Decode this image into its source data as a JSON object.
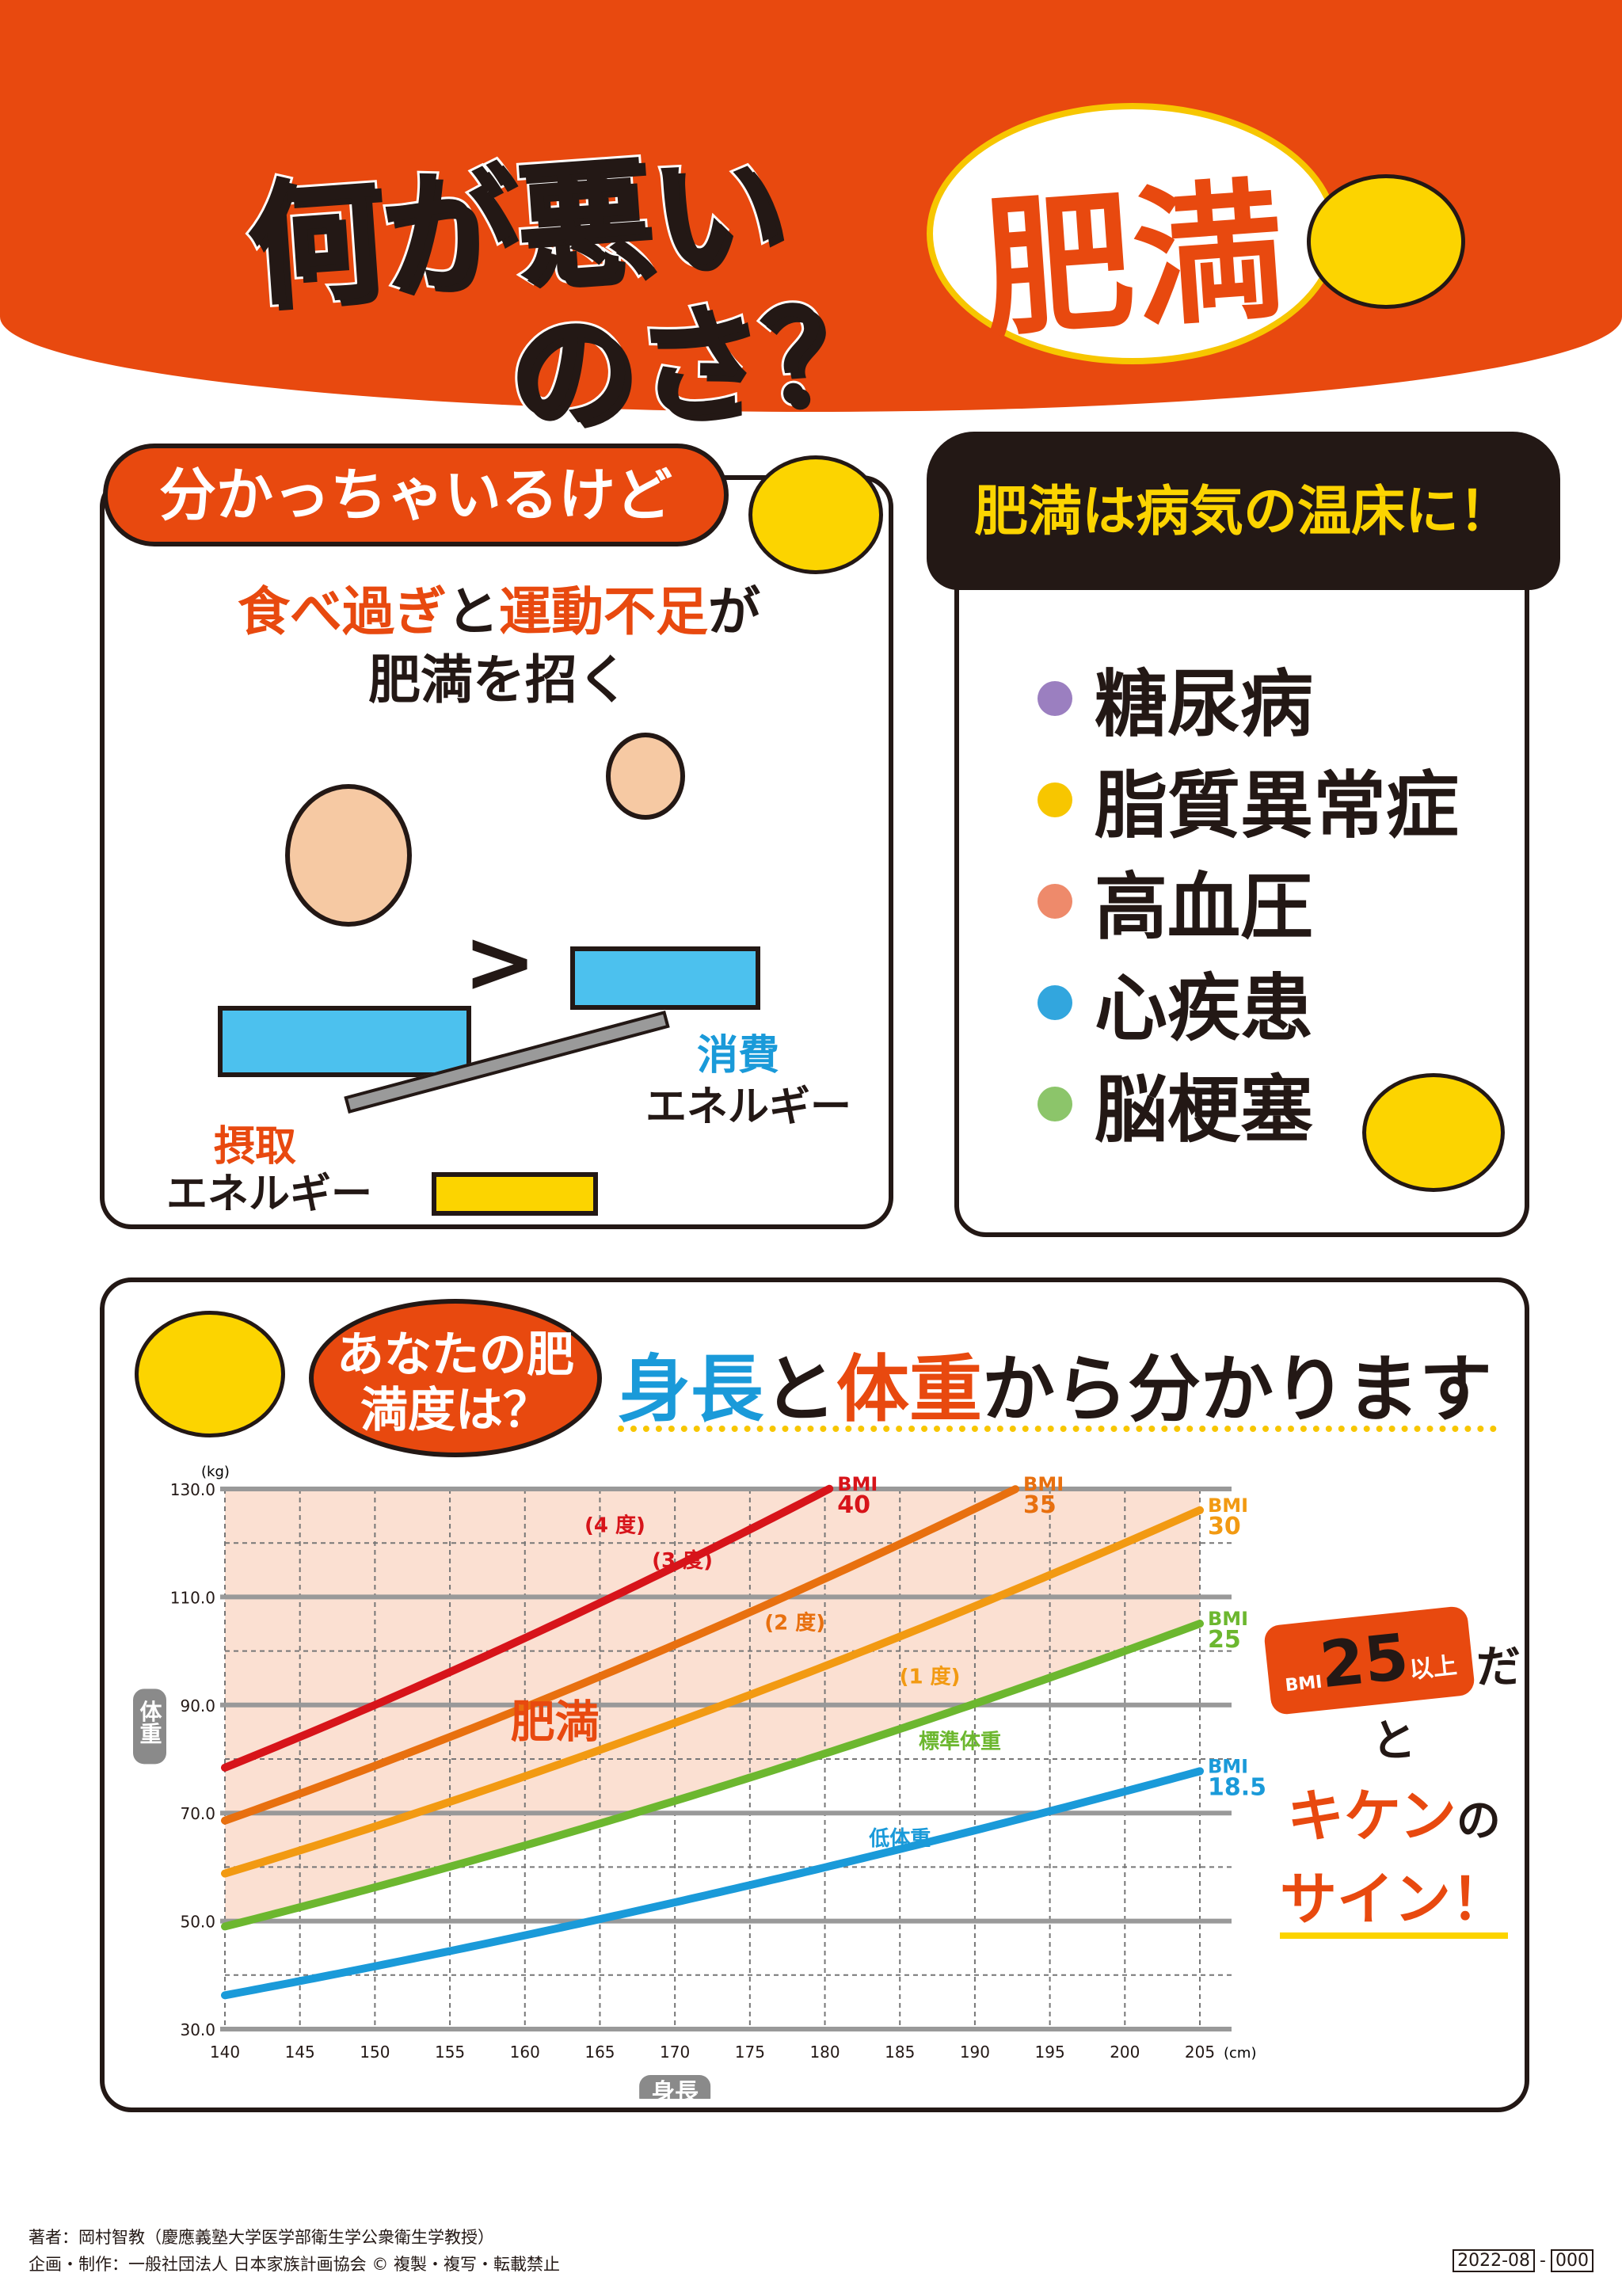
{
  "header": {
    "title_line1": "何が悪い",
    "title_line2": "のさ？",
    "badge": "肥満",
    "accent": "#e8490f"
  },
  "left_panel": {
    "bubble": "分かっちゃいるけど",
    "lead_part1": "食べ過ぎ",
    "lead_part2": "と",
    "lead_part3": "運動不足",
    "lead_part4": "が",
    "lead_line2": "肥満を招く",
    "intake_label1": "摂取",
    "intake_label2": "エネルギー",
    "consume_label1": "消費",
    "consume_label2": "エネルギー",
    "compare_symbol": ">"
  },
  "right_panel": {
    "heading": "肥満は病気の温床に！",
    "items": [
      {
        "label": "糖尿病",
        "color": "#9b7fc0"
      },
      {
        "label": "脂質異常症",
        "color": "#f7c600"
      },
      {
        "label": "高血圧",
        "color": "#ee8a6b"
      },
      {
        "label": "心疾患",
        "color": "#32a6de"
      },
      {
        "label": "脳梗塞",
        "color": "#8cc56a"
      }
    ]
  },
  "bottom_panel": {
    "question": "あなたの肥満度は？",
    "title_part1": "身長",
    "title_part2": "と",
    "title_part3": "体重",
    "title_part4": "から分かります",
    "warning": {
      "bmi": "BMI",
      "num": "25",
      "ijou": "以上",
      "dato": "だと",
      "kiken": "キケン",
      "no": "の",
      "sign": "サイン！"
    }
  },
  "chart_data": {
    "type": "line",
    "xlabel": "身長",
    "ylabel": "体重",
    "x_unit": "(cm)",
    "y_unit": "(kg)",
    "xlim": [
      140,
      205
    ],
    "ylim": [
      30,
      130
    ],
    "x_ticks": [
      "140",
      "145",
      "150",
      "155",
      "160",
      "165",
      "170",
      "175",
      "180",
      "185",
      "190",
      "195",
      "200",
      "205"
    ],
    "y_ticks": [
      "30.0",
      "50.0",
      "70.0",
      "90.0",
      "110.0",
      "130.0"
    ],
    "grid": true,
    "series": [
      {
        "name": "BMI 40",
        "bmi": 40,
        "color": "#d7141a",
        "x": [
          140,
          180.3
        ],
        "label_bmi": "BMI",
        "label_num": "40"
      },
      {
        "name": "BMI 35",
        "bmi": 35,
        "color": "#e8700f",
        "x": [
          140,
          192.7
        ],
        "label_bmi": "BMI",
        "label_num": "35"
      },
      {
        "name": "BMI 30",
        "bmi": 30,
        "color": "#f29a12",
        "x": [
          140,
          205
        ],
        "label_bmi": "BMI",
        "label_num": "30"
      },
      {
        "name": "BMI 25",
        "bmi": 25,
        "color": "#6cb72f",
        "x": [
          140,
          205
        ],
        "label_bmi": "BMI",
        "label_num": "25"
      },
      {
        "name": "BMI 18.5",
        "bmi": 18.5,
        "color": "#1a9ad9",
        "x": [
          140,
          205
        ],
        "label_bmi": "BMI",
        "label_num": "18.5"
      }
    ],
    "annotations": [
      {
        "text": "(4 度)",
        "color": "#d7141a"
      },
      {
        "text": "(3 度)",
        "color": "#d7141a"
      },
      {
        "text": "(2 度)",
        "color": "#e8700f"
      },
      {
        "text": "(1 度)",
        "color": "#f29a12"
      },
      {
        "text": "肥満",
        "color": "#e8490f"
      },
      {
        "text": "標準体重",
        "color": "#6cb72f"
      },
      {
        "text": "低体重",
        "color": "#1a9ad9"
      }
    ],
    "shaded_region": {
      "from_bmi": 25,
      "to_weight": 130,
      "color": "#fbe0d2"
    }
  },
  "footer": {
    "line1": "著者：岡村智教（慶應義塾大学医学部衛生学公衆衛生学教授）",
    "line2": "企画・制作：一般社団法人 日本家族計画協会 © 複製・複写・転載禁止",
    "code1": "2022-08",
    "code2": "000"
  }
}
